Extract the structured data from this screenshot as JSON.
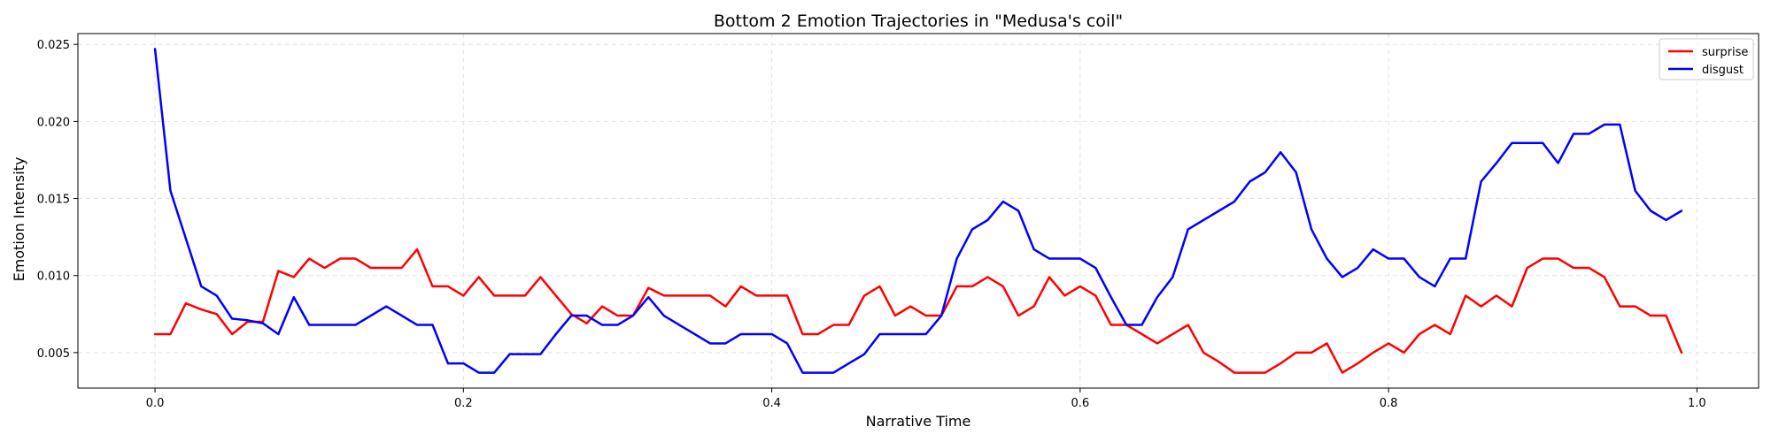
{
  "chart_data": {
    "type": "line",
    "title": "Bottom 2 Emotion Trajectories in \"Medusa's coil\"",
    "xlabel": "Narrative Time",
    "ylabel": "Emotion Intensity",
    "xlim": [
      -0.05,
      1.04
    ],
    "ylim": [
      0.0027,
      0.0257
    ],
    "xticks": [
      0.0,
      0.2,
      0.4,
      0.6,
      0.8,
      1.0
    ],
    "xtick_labels": [
      "0.0",
      "0.2",
      "0.4",
      "0.6",
      "0.8",
      "1.0"
    ],
    "yticks": [
      0.005,
      0.01,
      0.015,
      0.02,
      0.025
    ],
    "ytick_labels": [
      "0.005",
      "0.010",
      "0.015",
      "0.020",
      "0.025"
    ],
    "grid": true,
    "legend_position": "top-right",
    "x": [
      0.0,
      0.01,
      0.02,
      0.03,
      0.04,
      0.05,
      0.06,
      0.07,
      0.08,
      0.09,
      0.1,
      0.11,
      0.12,
      0.13,
      0.14,
      0.15,
      0.16,
      0.17,
      0.18,
      0.19,
      0.2,
      0.21,
      0.22,
      0.23,
      0.24,
      0.25,
      0.26,
      0.27,
      0.28,
      0.29,
      0.3,
      0.31,
      0.32,
      0.33,
      0.34,
      0.35,
      0.36,
      0.37,
      0.38,
      0.39,
      0.4,
      0.41,
      0.42,
      0.43,
      0.44,
      0.45,
      0.46,
      0.47,
      0.48,
      0.49,
      0.5,
      0.51,
      0.52,
      0.53,
      0.54,
      0.55,
      0.56,
      0.57,
      0.58,
      0.59,
      0.6,
      0.61,
      0.62,
      0.63,
      0.64,
      0.65,
      0.66,
      0.67,
      0.68,
      0.69,
      0.7,
      0.71,
      0.72,
      0.73,
      0.74,
      0.75,
      0.76,
      0.77,
      0.78,
      0.79,
      0.8,
      0.81,
      0.82,
      0.83,
      0.84,
      0.85,
      0.86,
      0.87,
      0.88,
      0.89,
      0.9,
      0.91,
      0.92,
      0.93,
      0.94,
      0.95,
      0.96,
      0.97,
      0.98,
      0.99
    ],
    "series": [
      {
        "name": "surprise",
        "color": "#ff0000",
        "values": [
          0.0062,
          0.0062,
          0.0082,
          0.0078,
          0.0075,
          0.0062,
          0.007,
          0.007,
          0.0103,
          0.0099,
          0.0111,
          0.0105,
          0.0111,
          0.0111,
          0.0105,
          0.0105,
          0.0105,
          0.0117,
          0.0093,
          0.0093,
          0.0087,
          0.0099,
          0.0087,
          0.0087,
          0.0087,
          0.0099,
          0.0087,
          0.0075,
          0.0069,
          0.008,
          0.0074,
          0.0074,
          0.0092,
          0.0087,
          0.0087,
          0.0087,
          0.0087,
          0.008,
          0.0093,
          0.0087,
          0.0087,
          0.0087,
          0.0062,
          0.0062,
          0.0068,
          0.0068,
          0.0087,
          0.0093,
          0.0074,
          0.008,
          0.0074,
          0.0074,
          0.0093,
          0.0093,
          0.0099,
          0.0093,
          0.0074,
          0.008,
          0.0099,
          0.0087,
          0.0093,
          0.0087,
          0.0068,
          0.0068,
          0.0062,
          0.0056,
          0.0062,
          0.0068,
          0.005,
          0.0044,
          0.0037,
          0.0037,
          0.0037,
          0.0043,
          0.005,
          0.005,
          0.0056,
          0.0037,
          0.0043,
          0.005,
          0.0056,
          0.005,
          0.0062,
          0.0068,
          0.0062,
          0.0087,
          0.008,
          0.0087,
          0.008,
          0.0105,
          0.0111,
          0.0111,
          0.0105,
          0.0105,
          0.0099,
          0.008,
          0.008,
          0.0074,
          0.0074,
          0.005
        ]
      },
      {
        "name": "disgust",
        "color": "#0000ff",
        "values": [
          0.0247,
          0.0155,
          0.0124,
          0.0093,
          0.0087,
          0.0072,
          0.0071,
          0.0069,
          0.0062,
          0.0086,
          0.0068,
          0.0068,
          0.0068,
          0.0068,
          0.0074,
          0.008,
          0.0074,
          0.0068,
          0.0068,
          0.0043,
          0.0043,
          0.0037,
          0.0037,
          0.0049,
          0.0049,
          0.0049,
          0.0062,
          0.0074,
          0.0074,
          0.0068,
          0.0068,
          0.0074,
          0.0086,
          0.0074,
          0.0068,
          0.0062,
          0.0056,
          0.0056,
          0.0062,
          0.0062,
          0.0062,
          0.0056,
          0.0037,
          0.0037,
          0.0037,
          0.0043,
          0.0049,
          0.0062,
          0.0062,
          0.0062,
          0.0062,
          0.0074,
          0.0111,
          0.013,
          0.0136,
          0.0148,
          0.0142,
          0.0117,
          0.0111,
          0.0111,
          0.0111,
          0.0105,
          0.0086,
          0.0068,
          0.0068,
          0.0086,
          0.0099,
          0.013,
          0.0136,
          0.0142,
          0.0148,
          0.0161,
          0.0167,
          0.018,
          0.0167,
          0.013,
          0.0111,
          0.0099,
          0.0105,
          0.0117,
          0.0111,
          0.0111,
          0.0099,
          0.0093,
          0.0111,
          0.0111,
          0.0161,
          0.0173,
          0.0186,
          0.0186,
          0.0186,
          0.0173,
          0.0192,
          0.0192,
          0.0198,
          0.0198,
          0.0155,
          0.0142,
          0.0136,
          0.0142
        ]
      }
    ]
  }
}
